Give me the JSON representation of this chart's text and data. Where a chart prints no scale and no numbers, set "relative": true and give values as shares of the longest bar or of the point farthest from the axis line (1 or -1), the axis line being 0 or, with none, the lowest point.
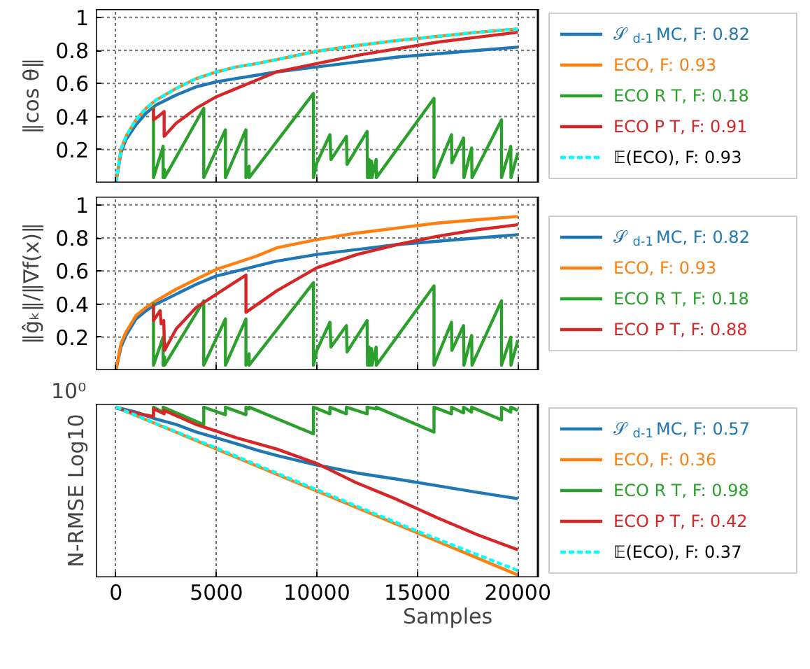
{
  "chart_data": [
    {
      "type": "line",
      "ylabel": "‖cos θ‖",
      "xlim": [
        -1000,
        21000
      ],
      "xticks": [
        0,
        5000,
        10000,
        15000,
        20000
      ],
      "ylim": [
        0,
        1.05
      ],
      "yticks": [
        0.2,
        0.4,
        0.6,
        0.8,
        1.0
      ],
      "tick_labels": "y",
      "grid": true,
      "legend": "right",
      "series": [
        {
          "name": "𝒮$_{d-1}$ MC, F: 0.82",
          "color": "#1f77b4",
          "x": [
            0,
            250,
            500,
            1000,
            1500,
            2000,
            3000,
            4000,
            5000,
            6000,
            7000,
            8000,
            10000,
            12000,
            14000,
            16000,
            18000,
            20000
          ],
          "values": [
            0,
            0.18,
            0.26,
            0.35,
            0.42,
            0.47,
            0.53,
            0.58,
            0.61,
            0.63,
            0.65,
            0.67,
            0.7,
            0.73,
            0.76,
            0.78,
            0.8,
            0.82
          ]
        },
        {
          "name": "ECO, F: 0.93",
          "color": "#ff7f0e",
          "x": [
            0,
            250,
            500,
            1000,
            1500,
            2000,
            3000,
            4000,
            5000,
            6000,
            7000,
            8000,
            10000,
            12000,
            14000,
            16000,
            18000,
            20000
          ],
          "values": [
            0,
            0.2,
            0.28,
            0.38,
            0.45,
            0.5,
            0.57,
            0.63,
            0.67,
            0.7,
            0.72,
            0.745,
            0.795,
            0.83,
            0.86,
            0.885,
            0.91,
            0.93
          ]
        },
        {
          "name": "ECO R T, F: 0.18",
          "color": "#2ca02c",
          "x": [
            1870,
            1870,
            2350,
            2350,
            2420,
            2420,
            4370,
            4370,
            5450,
            5450,
            6470,
            6470,
            6630,
            6630,
            9830,
            9830,
            10000,
            10650,
            10700,
            11470,
            11500,
            12500,
            12520,
            12600,
            12620,
            12720,
            12740,
            12950,
            12960,
            15830,
            15830,
            16700,
            16720,
            17300,
            17320,
            17700,
            17720,
            19190,
            19190,
            19650,
            19660,
            20000
          ],
          "values": [
            0.46,
            0.03,
            0.22,
            0.03,
            0.08,
            0.03,
            0.45,
            0.03,
            0.32,
            0.03,
            0.32,
            0.03,
            0.1,
            0.03,
            0.54,
            0.03,
            0.12,
            0.29,
            0.14,
            0.28,
            0.11,
            0.31,
            0.03,
            0.14,
            0.03,
            0.13,
            0.03,
            0.14,
            0.03,
            0.51,
            0.03,
            0.29,
            0.12,
            0.27,
            0.03,
            0.21,
            0.03,
            0.38,
            0.03,
            0.22,
            0.03,
            0.18
          ]
        },
        {
          "name": "ECO P T, F: 0.91",
          "color": "#d62728",
          "x": [
            1870,
            1870,
            2200,
            2400,
            2400,
            3000,
            4000,
            5000,
            6000,
            7000,
            8000,
            10000,
            12000,
            14000,
            16000,
            18000,
            20000
          ],
          "values": [
            0.45,
            0.38,
            0.41,
            0.43,
            0.28,
            0.36,
            0.45,
            0.52,
            0.57,
            0.62,
            0.67,
            0.72,
            0.77,
            0.81,
            0.85,
            0.88,
            0.91
          ]
        },
        {
          "name": "𝔼(ECO), F: 0.93",
          "color": "#00ffff",
          "line_style": "dashed",
          "x": [
            0,
            250,
            500,
            1000,
            1500,
            2000,
            3000,
            4000,
            5000,
            6000,
            7000,
            8000,
            10000,
            12000,
            14000,
            16000,
            18000,
            20000
          ],
          "values": [
            0,
            0.2,
            0.28,
            0.38,
            0.45,
            0.5,
            0.57,
            0.63,
            0.67,
            0.7,
            0.72,
            0.745,
            0.795,
            0.83,
            0.86,
            0.885,
            0.91,
            0.93
          ]
        }
      ]
    },
    {
      "type": "line",
      "ylabel": "‖ĝₖ‖/‖∇f(x)‖",
      "xlim": [
        -1000,
        21000
      ],
      "xticks": [
        0,
        5000,
        10000,
        15000,
        20000
      ],
      "ylim": [
        0,
        1.05
      ],
      "yticks": [
        0.2,
        0.4,
        0.6,
        0.8,
        1.0
      ],
      "tick_labels": "y",
      "grid": true,
      "legend": "right",
      "series": [
        {
          "name": "𝒮$_{d-1}$ MC, F: 0.82",
          "color": "#1f77b4",
          "x": [
            0,
            250,
            500,
            1000,
            1500,
            2000,
            3000,
            4000,
            5000,
            6000,
            7000,
            8000,
            10000,
            12000,
            14000,
            16000,
            18000,
            20000
          ],
          "values": [
            0,
            0.14,
            0.21,
            0.31,
            0.36,
            0.4,
            0.46,
            0.52,
            0.57,
            0.6,
            0.63,
            0.66,
            0.7,
            0.73,
            0.76,
            0.78,
            0.8,
            0.82
          ]
        },
        {
          "name": "ECO, F: 0.93",
          "color": "#ff7f0e",
          "x": [
            0,
            250,
            500,
            1000,
            1500,
            2000,
            3000,
            4000,
            5000,
            6000,
            7000,
            8000,
            10000,
            12000,
            14000,
            16000,
            18000,
            20000
          ],
          "values": [
            0,
            0.16,
            0.23,
            0.33,
            0.38,
            0.42,
            0.49,
            0.55,
            0.61,
            0.65,
            0.69,
            0.74,
            0.79,
            0.83,
            0.86,
            0.89,
            0.91,
            0.93
          ]
        },
        {
          "name": "ECO R T, F: 0.18",
          "color": "#2ca02c",
          "x": [
            1870,
            1870,
            2350,
            2350,
            2420,
            2420,
            4370,
            4370,
            5450,
            5450,
            6470,
            6470,
            6630,
            6630,
            9830,
            9830,
            10000,
            10650,
            10700,
            11470,
            11500,
            12500,
            12520,
            12600,
            12620,
            12720,
            12740,
            12950,
            12960,
            15830,
            15830,
            16700,
            16720,
            17300,
            17320,
            17700,
            17720,
            19190,
            19190,
            19650,
            19660,
            20000
          ],
          "values": [
            0.41,
            0.03,
            0.2,
            0.03,
            0.08,
            0.03,
            0.42,
            0.03,
            0.31,
            0.03,
            0.31,
            0.03,
            0.1,
            0.03,
            0.53,
            0.03,
            0.12,
            0.29,
            0.14,
            0.27,
            0.11,
            0.3,
            0.03,
            0.14,
            0.03,
            0.13,
            0.03,
            0.14,
            0.03,
            0.51,
            0.03,
            0.29,
            0.12,
            0.27,
            0.03,
            0.21,
            0.03,
            0.42,
            0.03,
            0.2,
            0.03,
            0.18
          ]
        },
        {
          "name": "ECO P T, F: 0.88",
          "color": "#d62728",
          "x": [
            1870,
            1870,
            2200,
            2250,
            2380,
            2420,
            3000,
            4000,
            5000,
            6470,
            6470,
            8000,
            10000,
            12000,
            14000,
            16000,
            18000,
            20000
          ],
          "values": [
            0.4,
            0.3,
            0.36,
            0.28,
            0.3,
            0.12,
            0.25,
            0.38,
            0.46,
            0.575,
            0.35,
            0.48,
            0.62,
            0.7,
            0.76,
            0.81,
            0.85,
            0.88
          ]
        }
      ]
    },
    {
      "type": "line",
      "xlabel": "Samples",
      "ylabel": "N-RMSE Log10",
      "relative": true,
      "annotations": [
        "10⁰"
      ],
      "xlim": [
        -1000,
        21000
      ],
      "xticks": [
        0,
        5000,
        10000,
        15000,
        20000
      ],
      "grid": "x",
      "legend": "right",
      "series": [
        {
          "name": "𝒮$_{d-1}$ MC, F: 0.57",
          "color": "#1f77b4",
          "x": [
            0,
            1000,
            2000,
            3000,
            4000,
            5000,
            6000,
            7000,
            8000,
            10000,
            12000,
            14000,
            16000,
            18000,
            20000
          ],
          "values": [
            1.0,
            0.971,
            0.93,
            0.898,
            0.854,
            0.82,
            0.785,
            0.748,
            0.716,
            0.66,
            0.613,
            0.577,
            0.538,
            0.499,
            0.462
          ]
        },
        {
          "name": "ECO, F: 0.36",
          "color": "#ff7f0e",
          "x": [
            0,
            5000,
            10000,
            15000,
            20000
          ],
          "values": [
            1.0,
            0.754,
            0.507,
            0.261,
            0.014
          ]
        },
        {
          "name": "ECO R T, F: 0.98",
          "color": "#2ca02c",
          "x": [
            1870,
            1870,
            2350,
            2350,
            4370,
            4370,
            5450,
            5450,
            6470,
            6470,
            6630,
            6630,
            9830,
            9830,
            10650,
            10650,
            11470,
            11470,
            12500,
            12500,
            12950,
            12950,
            15830,
            15830,
            16700,
            16700,
            17300,
            17300,
            17700,
            17700,
            19190,
            19190,
            19650,
            19650,
            20000
          ],
          "values": [
            0.95,
            1.0,
            0.971,
            1.0,
            0.898,
            1.0,
            0.956,
            1.0,
            0.956,
            1.0,
            0.99,
            1.0,
            0.843,
            1.0,
            0.961,
            1.0,
            0.961,
            1.0,
            0.961,
            1.0,
            0.99,
            1.0,
            0.854,
            1.0,
            0.961,
            1.0,
            0.966,
            1.0,
            0.971,
            1.0,
            0.925,
            1.0,
            0.971,
            1.0,
            0.981
          ]
        },
        {
          "name": "ECO P T, F: 0.42",
          "color": "#d62728",
          "x": [
            0,
            1000,
            1870,
            1870,
            2400,
            2400,
            4000,
            6000,
            8000,
            10000,
            12000,
            14000,
            16000,
            18000,
            20000
          ],
          "values": [
            0.995,
            0.965,
            0.945,
            0.99,
            0.961,
            0.981,
            0.898,
            0.82,
            0.754,
            0.669,
            0.554,
            0.457,
            0.35,
            0.25,
            0.162
          ]
        },
        {
          "name": "𝔼(ECO), F: 0.37",
          "color": "#00ffff",
          "line_style": "dashed",
          "x": [
            0,
            5000,
            10000,
            15000,
            20000
          ],
          "values": [
            1.0,
            0.76,
            0.515,
            0.271,
            0.04
          ]
        }
      ]
    }
  ]
}
